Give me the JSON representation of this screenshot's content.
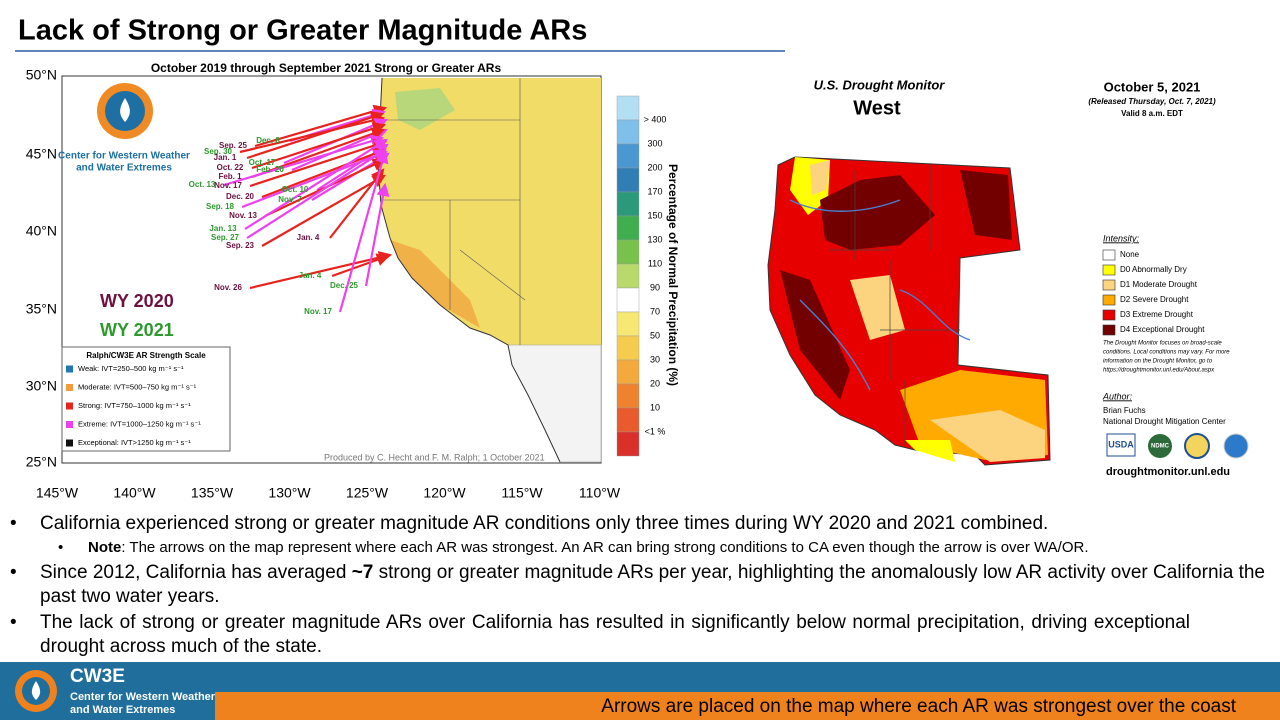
{
  "title": "Lack of Strong or Greater Magnitude ARs",
  "left_map": {
    "title": "October 2019 through September 2021 Strong or Greater ARs",
    "lat_labels": [
      "50°N",
      "45°N",
      "40°N",
      "35°N",
      "30°N",
      "25°N"
    ],
    "lon_labels": [
      "145°W",
      "140°W",
      "135°W",
      "130°W",
      "125°W",
      "120°W",
      "115°W",
      "110°W"
    ],
    "logo_lines": [
      "Center for Western Weather",
      "and Water Extremes"
    ],
    "years": [
      {
        "label": "WY 2020",
        "color": "#6d1140"
      },
      {
        "label": "WY 2021",
        "color": "#2e9a2e"
      }
    ],
    "arrow_labels": [
      {
        "label": "Sep. 25",
        "year": 0
      },
      {
        "label": "Dec. 8",
        "year": 1
      },
      {
        "label": "Sep. 30",
        "year": 1
      },
      {
        "label": "Jan. 1",
        "year": 0
      },
      {
        "label": "Oct. 17",
        "year": 1
      },
      {
        "label": "Oct. 22",
        "year": 0
      },
      {
        "label": "Feb. 20",
        "year": 1
      },
      {
        "label": "Feb. 1",
        "year": 0
      },
      {
        "label": "Oct. 13",
        "year": 1
      },
      {
        "label": "Nov. 17",
        "year": 0
      },
      {
        "label": "Oct. 10",
        "year": 1
      },
      {
        "label": "Dec. 20",
        "year": 0
      },
      {
        "label": "Nov. 7",
        "year": 1
      },
      {
        "label": "Sep. 18",
        "year": 1
      },
      {
        "label": "Nov. 13",
        "year": 0
      },
      {
        "label": "Jan. 13",
        "year": 1
      },
      {
        "label": "Sep. 27",
        "year": 1
      },
      {
        "label": "Jan. 4",
        "year": 0
      },
      {
        "label": "Sep. 23",
        "year": 0
      },
      {
        "label": "Jan. 4",
        "year": 1
      },
      {
        "label": "Nov. 26",
        "year": 0
      },
      {
        "label": "Dec. 25",
        "year": 1
      },
      {
        "label": "Nov. 17",
        "year": 1
      }
    ],
    "legend": {
      "title": "Ralph/CW3E AR Strength Scale",
      "items": [
        {
          "label": "Weak: IVT=250–500 kg m⁻¹ s⁻¹",
          "color": "#1f77b4"
        },
        {
          "label": "Moderate: IVT=500–750 kg m⁻¹ s⁻¹",
          "color": "#f39c3c"
        },
        {
          "label": "Strong: IVT=750–1000 kg m⁻¹ s⁻¹",
          "color": "#e8231e"
        },
        {
          "label": "Extreme: IVT=1000–1250 kg m⁻¹ s⁻¹",
          "color": "#ee40ee"
        },
        {
          "label": "Exceptional: IVT>1250 kg m⁻¹ s⁻¹",
          "color": "#111111"
        }
      ]
    },
    "colorbar": {
      "title": "Percentage of Normal Precipitation (%)",
      "labels": [
        "> 400",
        "300",
        "200",
        "170",
        "150",
        "130",
        "110",
        "90",
        "70",
        "50",
        "30",
        "20",
        "10",
        "<1 %"
      ],
      "colors": [
        "#b3dff5",
        "#7ec0ea",
        "#4a98d2",
        "#2f7fb5",
        "#2b9a7a",
        "#3fae4f",
        "#78c24c",
        "#b9da6a",
        "#ffffff",
        "#f6e873",
        "#f6cc4e",
        "#f4a93d",
        "#ef822f",
        "#e95a2c",
        "#d9302a"
      ]
    },
    "credit": "Produced by C. Hecht and F. M. Ralph; 1 October 2021"
  },
  "right_map": {
    "title": "U.S. Drought Monitor",
    "region": "West",
    "date": "October 5, 2021",
    "released": "(Released Thursday, Oct. 7, 2021)",
    "valid": "Valid 8 a.m. EDT",
    "legend_title": "Intensity:",
    "legend": [
      {
        "label": "None",
        "color": "#ffffff"
      },
      {
        "label": "D0 Abnormally Dry",
        "color": "#ffff00"
      },
      {
        "label": "D1 Moderate Drought",
        "color": "#fcd37f"
      },
      {
        "label": "D2 Severe Drought",
        "color": "#ffaa00"
      },
      {
        "label": "D3 Extreme Drought",
        "color": "#e60000"
      },
      {
        "label": "D4 Exceptional Drought",
        "color": "#730000"
      }
    ],
    "note_lines": [
      "The Drought Monitor focuses on broad-scale",
      "conditions. Local conditions may vary. For more",
      "information on the Drought Monitor, go to",
      "https://droughtmonitor.unl.edu/About.aspx"
    ],
    "author_title": "Author:",
    "author": "Brian Fuchs",
    "author_org": "National Drought Mitigation Center",
    "logos": [
      "USDA",
      "NDMC"
    ],
    "url": "droughtmonitor.unl.edu"
  },
  "bullets": [
    {
      "text": "California experienced strong or greater magnitude AR conditions only three times during WY 2020 and 2021 combined."
    },
    {
      "bold": "Note",
      "text": ": The arrows on the map represent where each AR was strongest. An AR can bring strong conditions to CA even though the arrow is over WA/OR."
    },
    {
      "pre": "Since 2012, California has averaged ",
      "bold": "~7",
      "text": " strong or greater magnitude ARs per year, highlighting the anomalously low AR activity over California the past two water years."
    },
    {
      "text": "The lack of strong or greater magnitude ARs over California has resulted in significantly below normal precipitation, driving exceptional drought across much of the state."
    }
  ],
  "footer": {
    "logo": "CW3E",
    "logo_lines": [
      "Center for Western Weather",
      "and Water Extremes"
    ],
    "caption": "Arrows are placed on the map where each AR was strongest over the coast"
  }
}
